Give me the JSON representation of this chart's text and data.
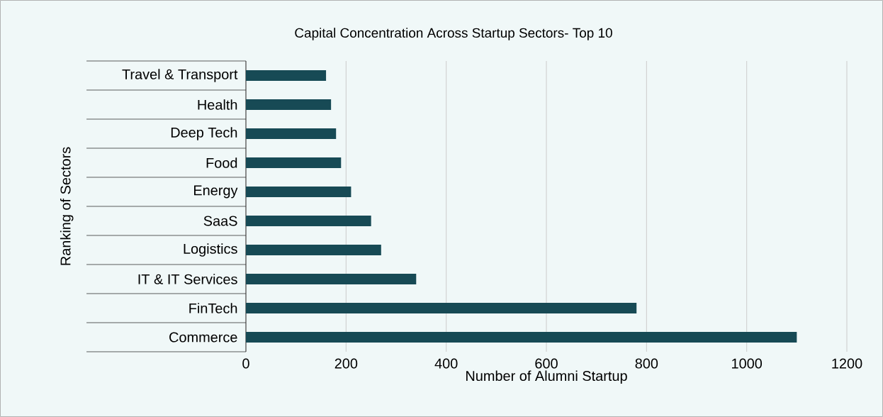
{
  "chart_data": {
    "type": "bar",
    "orientation": "horizontal",
    "title": "Capital Concentration Across Startup Sectors- Top 10",
    "xlabel": "Number of Alumni Startup",
    "ylabel": "Ranking of Sectors",
    "categories": [
      "Travel & Transport",
      "Health",
      "Deep Tech",
      "Food",
      "Energy",
      "SaaS",
      "Logistics",
      "IT & IT Services",
      "FinTech",
      "Commerce"
    ],
    "values": [
      160,
      170,
      180,
      190,
      210,
      250,
      270,
      340,
      780,
      1100
    ],
    "color": "#174a55",
    "xlim": [
      0,
      1200
    ],
    "xticks": [
      0,
      200,
      400,
      600,
      800,
      1000,
      1200
    ],
    "grid": "x"
  }
}
